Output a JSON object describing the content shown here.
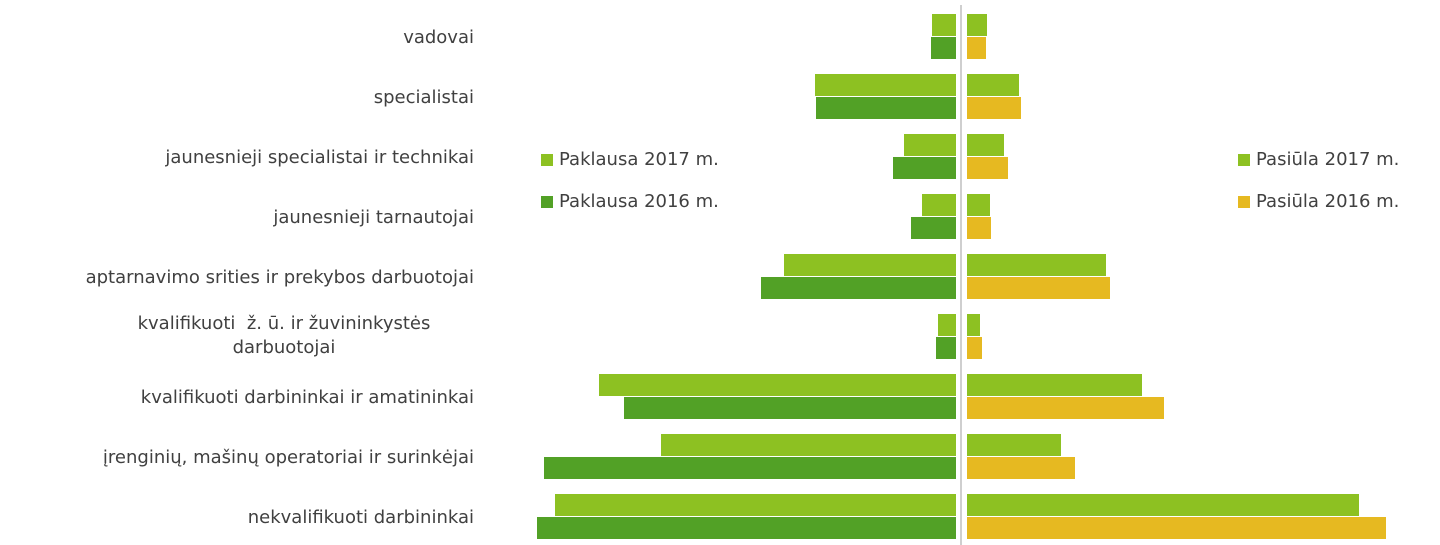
{
  "chart_data": [
    {
      "type": "bar",
      "orientation": "horizontal",
      "x_reversed": true,
      "legend": "left",
      "categories": [
        "vadovai",
        "specialistai",
        "jaunesnieji specialistai ir technikai",
        "jaunesnieji tarnautojai",
        "aptarnavimo srities ir prekybos darbuotojai",
        "kvalifikuoti  ž. ū. ir žuvininkystės darbuotojai",
        "kvalifikuoti darbininkai ir amatininkai",
        "įrenginių, mašinų operatoriai ir surinkėjai",
        "nekvalifikuoti darbininkai"
      ],
      "series": [
        {
          "name": "Paklausa 2017 m.",
          "color": "#8dc122",
          "values": [
            24,
            141,
            52,
            34,
            172,
            18,
            357,
            295,
            401
          ]
        },
        {
          "name": "Paklausa 2016 m.",
          "color": "#52a126",
          "values": [
            25,
            140,
            63,
            45,
            195,
            20,
            332,
            412,
            419
          ]
        }
      ]
    },
    {
      "type": "bar",
      "orientation": "horizontal",
      "x_reversed": false,
      "legend": "right",
      "series": [
        {
          "name": "Pasiūla 2017 m.",
          "color": "#8dc122",
          "values": [
            20,
            52,
            37,
            23,
            139,
            13,
            175,
            94,
            392
          ]
        },
        {
          "name": "Pasiūla 2016 m.",
          "color": "#e6b921",
          "values": [
            19,
            54,
            41,
            24,
            143,
            15,
            197,
            108,
            419
          ]
        }
      ]
    }
  ]
}
